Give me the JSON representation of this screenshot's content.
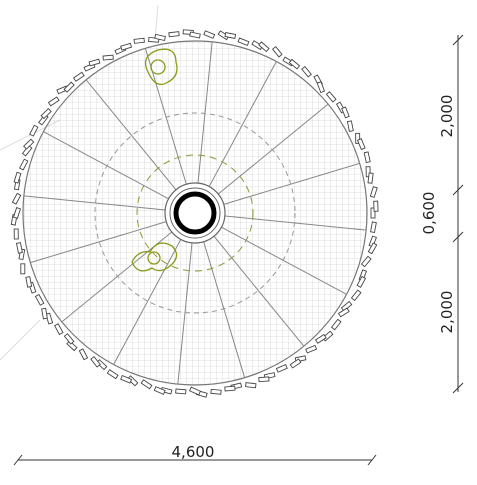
{
  "dimensions": {
    "width": "4,600",
    "upper": "2,000",
    "center": "0,600",
    "lower": "2,000"
  }
}
